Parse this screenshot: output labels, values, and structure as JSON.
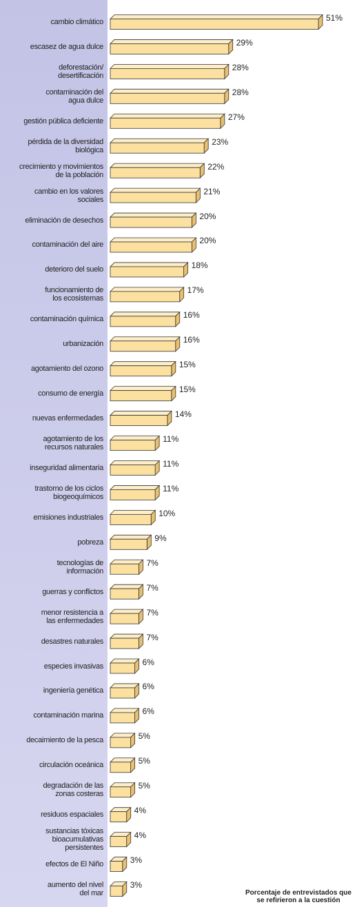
{
  "chart_data": {
    "type": "bar",
    "orientation": "horizontal",
    "color": "#fbe0a0",
    "note": "Porcentaje de entrevistados que\nse refirieron a la cuestión",
    "categories": [
      "cambio climático",
      "escasez de agua dulce",
      "deforestación/\ndesertificación",
      "contaminación del\nagua dulce",
      "gestión pública deficiente",
      "pérdida de la diversidad\nbiológica",
      "crecimiento y movimientos\nde la población",
      "cambio en los valores\nsociales",
      "eliminación de desechos",
      "contaminación del aire",
      "deterioro del suelo",
      "funcionamiento de\nlos ecosistemas",
      "contaminación química",
      "urbanización",
      "agotamiento del ozono",
      "consumo de energía",
      "nuevas enfermedades",
      "agotamiento de los\nrecursos naturales",
      "inseguridad alimentaria",
      "trastorno de los ciclos\nbiogeoquímicos",
      "emisiones industriales",
      "pobreza",
      "tecnologías de\ninformación",
      "guerras y conflictos",
      "menor resistencia a\nlas enfermedades",
      "desastres naturales",
      "especies invasivas",
      "ingeniería genética",
      "contaminación marina",
      "decaimiento de la pesca",
      "circulación oceánica",
      "degradación de las\nzonas costeras",
      "residuos espaciales",
      "sustancias tóxicas\nbioacumulativas\npersistentes",
      "efectos de El Niño",
      "aumento del nivel\ndel mar"
    ],
    "values": [
      51,
      29,
      28,
      28,
      27,
      23,
      22,
      21,
      20,
      20,
      18,
      17,
      16,
      16,
      15,
      15,
      14,
      11,
      11,
      11,
      10,
      9,
      7,
      7,
      7,
      7,
      6,
      6,
      6,
      5,
      5,
      5,
      4,
      4,
      3,
      3
    ],
    "value_labels": [
      "51%",
      "29%",
      "28%",
      "28%",
      "27%",
      "23%",
      "22%",
      "21%",
      "20%",
      "20%",
      "18%",
      "17%",
      "16%",
      "16%",
      "15%",
      "15%",
      "14%",
      "11%",
      "11%",
      "11%",
      "10%",
      "9%",
      "7%",
      "7%",
      "7%",
      "7%",
      "6%",
      "6%",
      "6%",
      "5%",
      "5%",
      "5%",
      "4%",
      "4%",
      "3%",
      "3%"
    ]
  }
}
